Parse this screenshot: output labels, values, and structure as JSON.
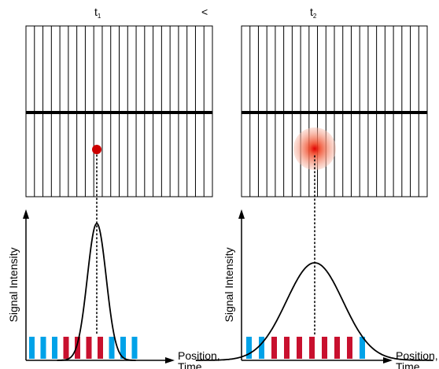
{
  "panels": [
    {
      "time_label": "t",
      "time_subscript": "1",
      "signal": {
        "shape": "narrow"
      },
      "bars": [
        "blue",
        "blue",
        "blue",
        "red",
        "red",
        "red",
        "red",
        "blue",
        "blue",
        "blue"
      ]
    },
    {
      "time_label": "t",
      "time_subscript": "2",
      "signal": {
        "shape": "wide"
      },
      "bars": [
        "blue",
        "blue",
        "red",
        "red",
        "red",
        "red",
        "red",
        "red",
        "red",
        "blue"
      ]
    }
  ],
  "comparison": "<",
  "y_axis_label": "Signal Intensity",
  "x_axis_label_line1": "Position,",
  "x_axis_label_line2": "Time",
  "colors": {
    "blue": "#00a2e8",
    "red": "#c8102e",
    "dot": "#cc0000",
    "line": "#000000"
  }
}
